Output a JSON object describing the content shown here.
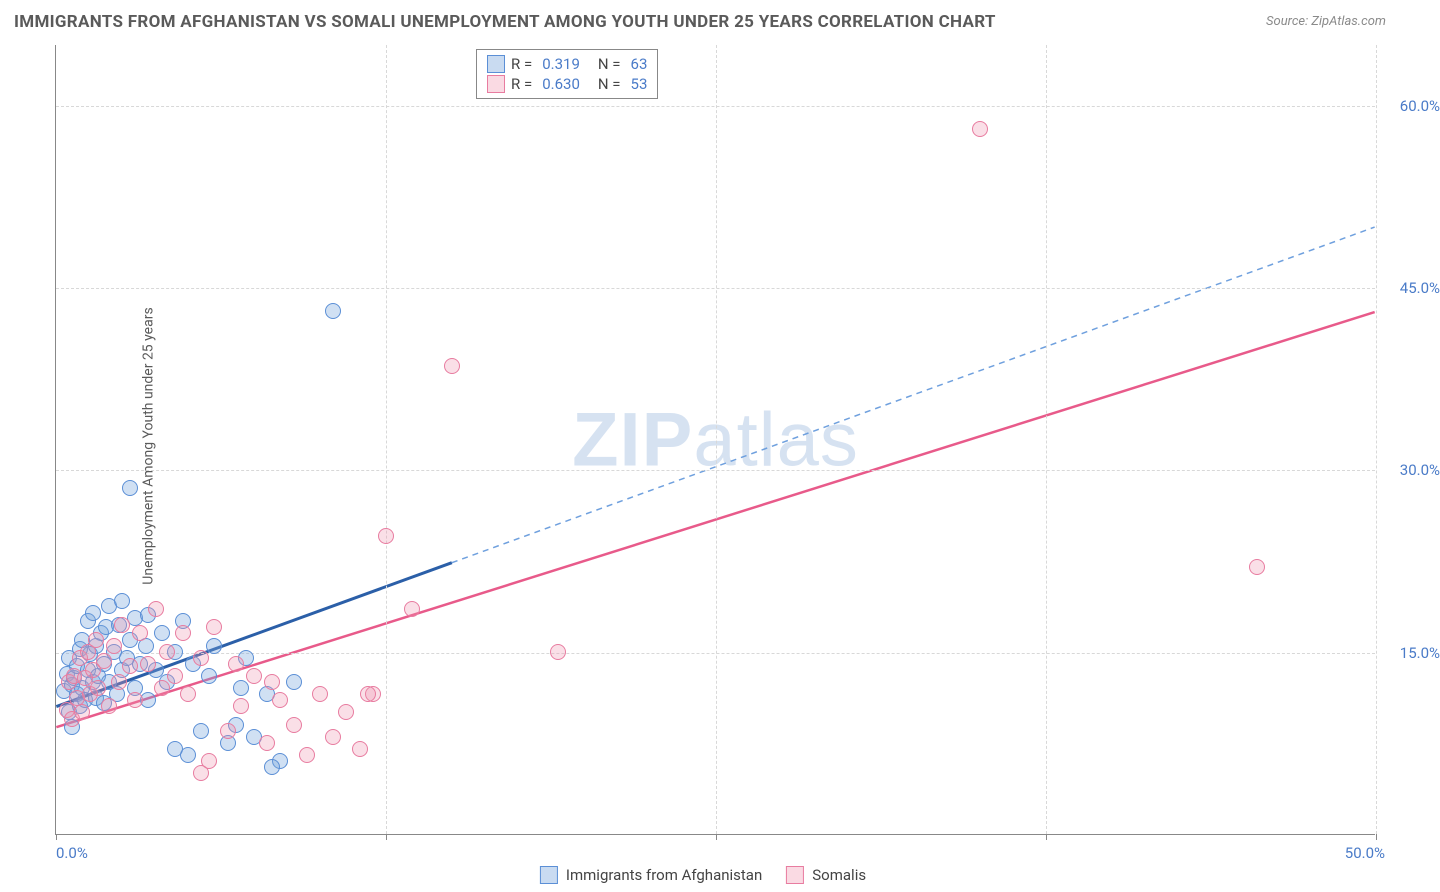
{
  "title": "IMMIGRANTS FROM AFGHANISTAN VS SOMALI UNEMPLOYMENT AMONG YOUTH UNDER 25 YEARS CORRELATION CHART",
  "source": "Source: ZipAtlas.com",
  "ylabel": "Unemployment Among Youth under 25 years",
  "watermark_bold": "ZIP",
  "watermark_rest": "atlas",
  "chart": {
    "type": "scatter",
    "xlim": [
      0,
      50
    ],
    "ylim": [
      0,
      65
    ],
    "xticks": [
      0,
      12.5,
      25,
      37.5,
      50
    ],
    "xtick_labels_shown": {
      "0": "0.0%",
      "50": "50.0%"
    },
    "yticks": [
      15,
      30,
      45,
      60
    ],
    "ytick_labels": [
      "15.0%",
      "30.0%",
      "45.0%",
      "60.0%"
    ],
    "grid_color": "#d8d8d8",
    "background_color": "#ffffff",
    "axis_color": "#888888",
    "series": [
      {
        "name": "Immigrants from Afghanistan",
        "color_fill": "rgba(120,165,220,0.35)",
        "color_stroke": "#5b8fd6",
        "marker_radius": 8,
        "R": "0.319",
        "N": "63",
        "trend": {
          "x1": 0,
          "y1": 10.5,
          "x2": 50,
          "y2": 50,
          "solid_end_x": 15
        },
        "points": [
          [
            0.3,
            11.8
          ],
          [
            0.4,
            13.2
          ],
          [
            0.5,
            10.0
          ],
          [
            0.5,
            14.5
          ],
          [
            0.6,
            12.3
          ],
          [
            0.6,
            8.8
          ],
          [
            0.7,
            12.8
          ],
          [
            0.8,
            11.5
          ],
          [
            0.8,
            13.8
          ],
          [
            0.9,
            15.2
          ],
          [
            0.9,
            10.5
          ],
          [
            1.0,
            12.0
          ],
          [
            1.0,
            16.0
          ],
          [
            1.1,
            11.0
          ],
          [
            1.2,
            13.5
          ],
          [
            1.2,
            17.5
          ],
          [
            1.3,
            14.8
          ],
          [
            1.4,
            12.5
          ],
          [
            1.4,
            18.2
          ],
          [
            1.5,
            11.2
          ],
          [
            1.5,
            15.5
          ],
          [
            1.6,
            13.0
          ],
          [
            1.7,
            16.5
          ],
          [
            1.8,
            14.0
          ],
          [
            1.8,
            10.8
          ],
          [
            1.9,
            17.0
          ],
          [
            2.0,
            12.5
          ],
          [
            2.0,
            18.8
          ],
          [
            2.2,
            15.0
          ],
          [
            2.3,
            11.5
          ],
          [
            2.4,
            17.2
          ],
          [
            2.5,
            13.5
          ],
          [
            2.5,
            19.2
          ],
          [
            2.7,
            14.5
          ],
          [
            2.8,
            16.0
          ],
          [
            3.0,
            12.0
          ],
          [
            3.0,
            17.8
          ],
          [
            3.2,
            14.0
          ],
          [
            3.4,
            15.5
          ],
          [
            3.5,
            11.0
          ],
          [
            3.5,
            18.0
          ],
          [
            3.8,
            13.5
          ],
          [
            4.0,
            16.5
          ],
          [
            4.2,
            12.5
          ],
          [
            4.5,
            15.0
          ],
          [
            4.8,
            17.5
          ],
          [
            5.0,
            6.5
          ],
          [
            5.2,
            14.0
          ],
          [
            5.5,
            8.5
          ],
          [
            5.8,
            13.0
          ],
          [
            6.0,
            15.5
          ],
          [
            6.5,
            7.5
          ],
          [
            7.0,
            12.0
          ],
          [
            7.2,
            14.5
          ],
          [
            7.5,
            8.0
          ],
          [
            8.0,
            11.5
          ],
          [
            8.5,
            6.0
          ],
          [
            9.0,
            12.5
          ],
          [
            2.8,
            28.5
          ],
          [
            10.5,
            43.0
          ],
          [
            8.2,
            5.5
          ],
          [
            4.5,
            7.0
          ],
          [
            6.8,
            9.0
          ]
        ]
      },
      {
        "name": "Somalis",
        "color_fill": "rgba(240,150,175,0.30)",
        "color_stroke": "#e87ca0",
        "marker_radius": 8,
        "R": "0.630",
        "N": "53",
        "trend": {
          "x1": 0,
          "y1": 8.8,
          "x2": 50,
          "y2": 43,
          "solid_end_x": 50
        },
        "points": [
          [
            0.4,
            10.2
          ],
          [
            0.5,
            12.5
          ],
          [
            0.6,
            9.5
          ],
          [
            0.7,
            13.0
          ],
          [
            0.8,
            11.2
          ],
          [
            0.9,
            14.5
          ],
          [
            1.0,
            10.0
          ],
          [
            1.1,
            12.8
          ],
          [
            1.2,
            15.0
          ],
          [
            1.3,
            11.5
          ],
          [
            1.4,
            13.5
          ],
          [
            1.5,
            16.0
          ],
          [
            1.6,
            12.0
          ],
          [
            1.8,
            14.2
          ],
          [
            2.0,
            10.5
          ],
          [
            2.2,
            15.5
          ],
          [
            2.4,
            12.5
          ],
          [
            2.5,
            17.2
          ],
          [
            2.8,
            13.8
          ],
          [
            3.0,
            11.0
          ],
          [
            3.2,
            16.5
          ],
          [
            3.5,
            14.0
          ],
          [
            3.8,
            18.5
          ],
          [
            4.0,
            12.0
          ],
          [
            4.2,
            15.0
          ],
          [
            4.5,
            13.0
          ],
          [
            4.8,
            16.5
          ],
          [
            5.0,
            11.5
          ],
          [
            5.5,
            14.5
          ],
          [
            5.8,
            6.0
          ],
          [
            6.0,
            17.0
          ],
          [
            6.5,
            8.5
          ],
          [
            7.0,
            10.5
          ],
          [
            7.5,
            13.0
          ],
          [
            8.0,
            7.5
          ],
          [
            8.5,
            11.0
          ],
          [
            9.0,
            9.0
          ],
          [
            9.5,
            6.5
          ],
          [
            10.0,
            11.5
          ],
          [
            10.5,
            8.0
          ],
          [
            11.0,
            10.0
          ],
          [
            11.5,
            7.0
          ],
          [
            12.0,
            11.5
          ],
          [
            12.5,
            24.5
          ],
          [
            13.5,
            18.5
          ],
          [
            15.0,
            38.5
          ],
          [
            19.0,
            15.0
          ],
          [
            35.0,
            58.0
          ],
          [
            45.5,
            22.0
          ],
          [
            5.5,
            5.0
          ],
          [
            8.2,
            12.5
          ],
          [
            6.8,
            14.0
          ],
          [
            11.8,
            11.5
          ]
        ]
      }
    ],
    "legend_bottom": [
      {
        "label": "Immigrants from Afghanistan",
        "swatch": "blue"
      },
      {
        "label": "Somalis",
        "swatch": "pink"
      }
    ]
  }
}
